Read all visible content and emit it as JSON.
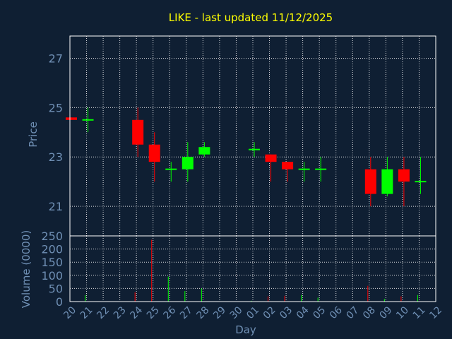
{
  "chart_data": {
    "type": "candlestick",
    "title": "LIKE - last updated 11/12/2025",
    "xlabel": "Day",
    "price_panel": {
      "ylabel": "Price",
      "ylim": [
        19.8,
        27.9
      ],
      "yticks": [
        21,
        23,
        25,
        27
      ],
      "grid": true
    },
    "volume_panel": {
      "ylabel": "Volume (0000)",
      "ylim": [
        0,
        250
      ],
      "yticks": [
        0,
        50,
        100,
        150,
        200,
        250
      ],
      "grid": true
    },
    "x_tick_labels": [
      "20",
      "21",
      "22",
      "23",
      "24",
      "25",
      "26",
      "27",
      "28",
      "29",
      "30",
      "01",
      "02",
      "03",
      "04",
      "05",
      "06",
      "07",
      "08",
      "09",
      "10",
      "11",
      "12"
    ],
    "candles": [
      {
        "day": "20",
        "open": 24.6,
        "close": 24.5,
        "high": 24.6,
        "low": 24.5,
        "volume": 0
      },
      {
        "day": "21",
        "open": 24.5,
        "close": 24.5,
        "high": 25.0,
        "low": 24.0,
        "volume": 25
      },
      {
        "day": "24",
        "open": 24.5,
        "close": 23.5,
        "high": 25.0,
        "low": 23.0,
        "volume": 35
      },
      {
        "day": "25",
        "open": 23.5,
        "close": 22.8,
        "high": 24.0,
        "low": 22.0,
        "volume": 235
      },
      {
        "day": "26",
        "open": 22.5,
        "close": 22.5,
        "high": 22.8,
        "low": 22.0,
        "volume": 95
      },
      {
        "day": "27",
        "open": 22.5,
        "close": 23.0,
        "high": 23.6,
        "low": 22.0,
        "volume": 40
      },
      {
        "day": "28",
        "open": 23.1,
        "close": 23.4,
        "high": 23.6,
        "low": 23.0,
        "volume": 50
      },
      {
        "day": "01",
        "open": 23.3,
        "close": 23.3,
        "high": 23.6,
        "low": 23.0,
        "volume": 3
      },
      {
        "day": "02",
        "open": 23.1,
        "close": 22.8,
        "high": 23.1,
        "low": 22.0,
        "volume": 20
      },
      {
        "day": "03",
        "open": 22.8,
        "close": 22.5,
        "high": 22.8,
        "low": 22.0,
        "volume": 22
      },
      {
        "day": "04",
        "open": 22.5,
        "close": 22.5,
        "high": 22.8,
        "low": 22.0,
        "volume": 25
      },
      {
        "day": "05",
        "open": 22.5,
        "close": 22.5,
        "high": 23.0,
        "low": 22.0,
        "volume": 15
      },
      {
        "day": "08",
        "open": 22.5,
        "close": 21.5,
        "high": 23.0,
        "low": 21.0,
        "volume": 60
      },
      {
        "day": "09",
        "open": 21.5,
        "close": 22.5,
        "high": 23.0,
        "low": 21.4,
        "volume": 10
      },
      {
        "day": "10",
        "open": 22.5,
        "close": 22.0,
        "high": 23.0,
        "low": 21.0,
        "volume": 20
      },
      {
        "day": "11",
        "open": 22.0,
        "close": 22.0,
        "high": 23.0,
        "low": 21.5,
        "volume": 25
      }
    ],
    "colors": {
      "background": "#0f1f33",
      "up": "#00ff00",
      "down": "#ff0000",
      "title": "#ffff00",
      "axis_text": "#6f8fb4",
      "grid": "#ffffff"
    }
  }
}
